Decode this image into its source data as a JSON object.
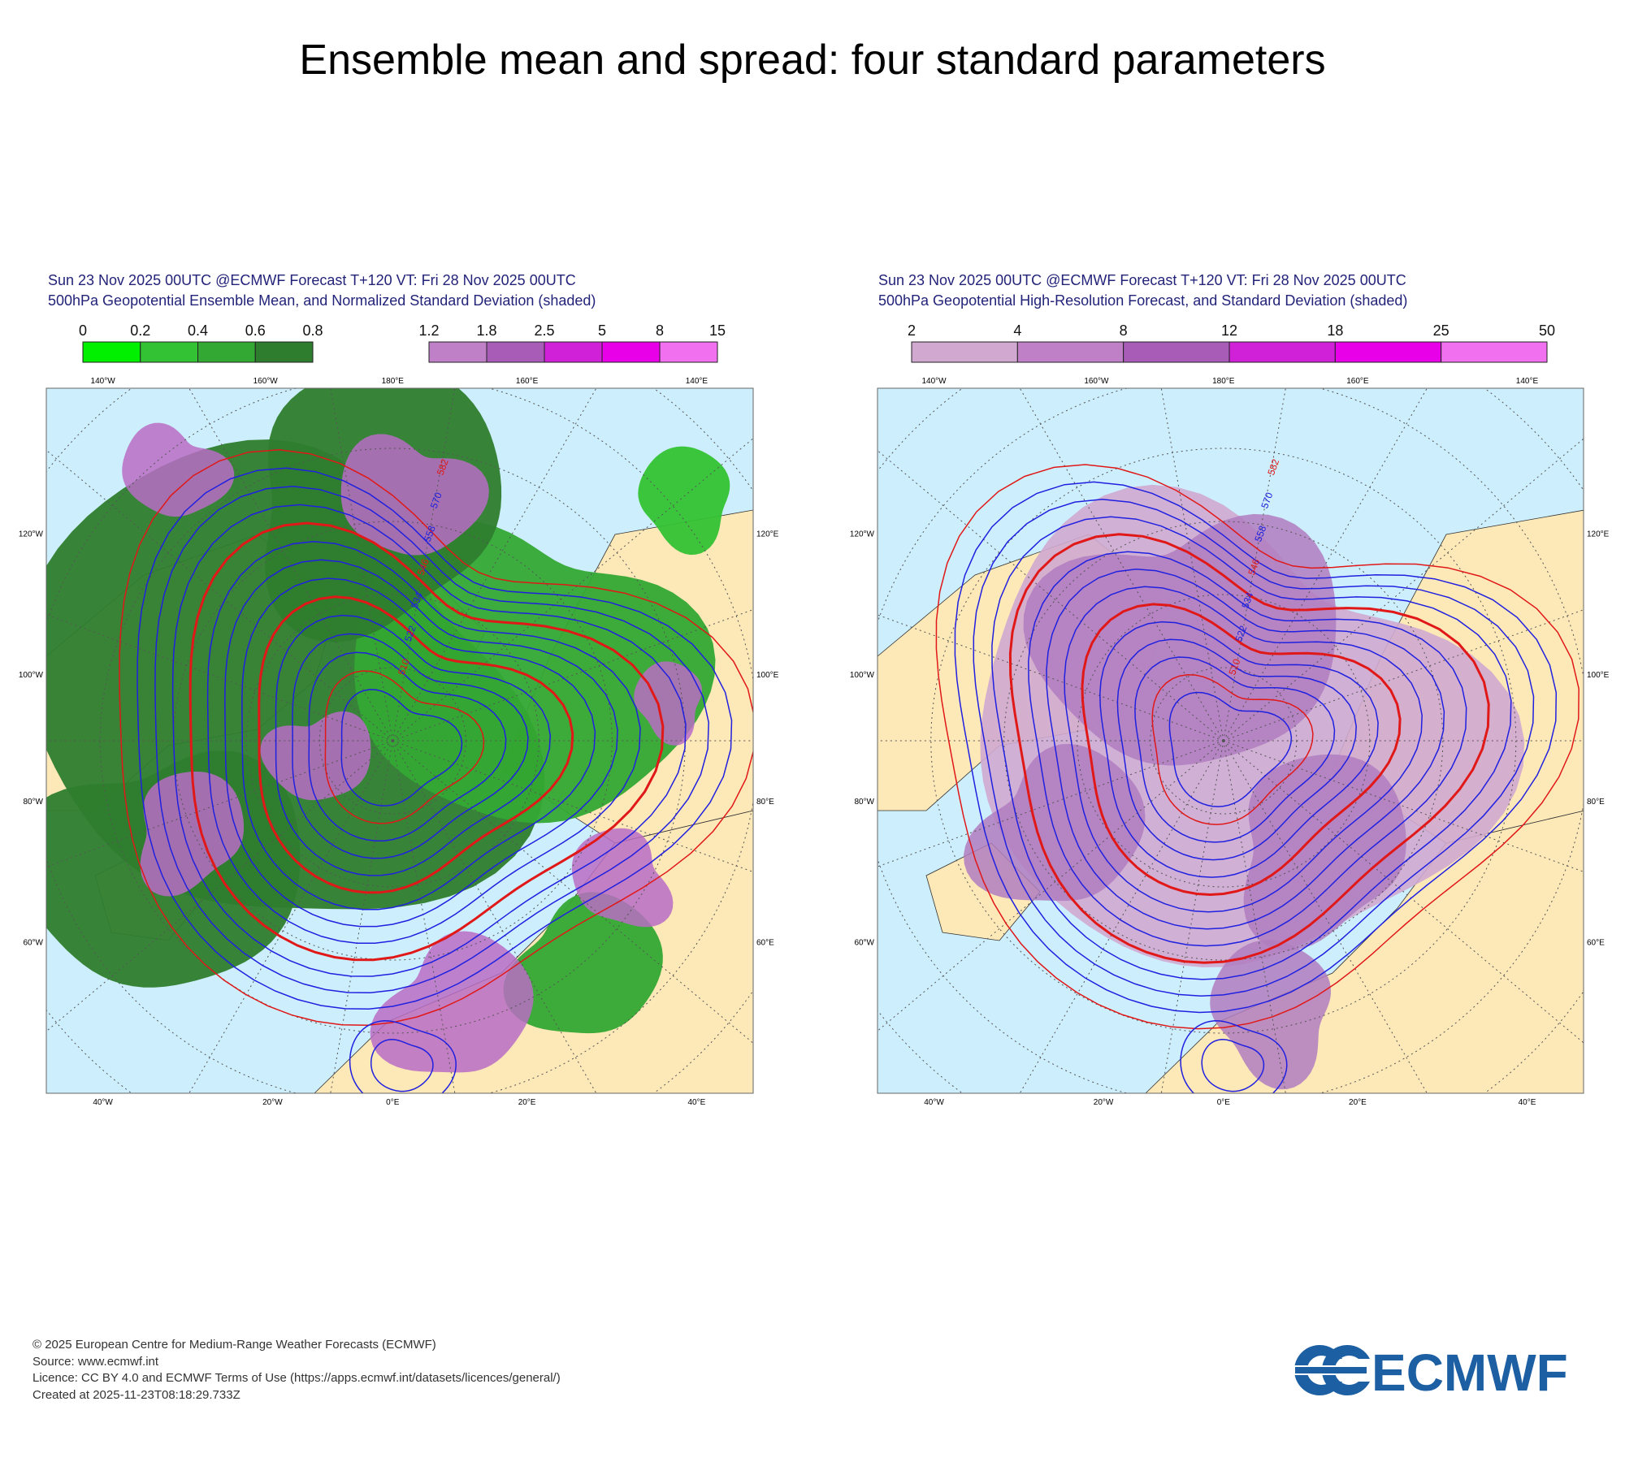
{
  "title": "Ensemble mean and spread: four standard parameters",
  "panels": [
    {
      "header": [
        "Sun 23 Nov 2025 00UTC @ECMWF Forecast T+120 VT: Fri 28 Nov 2025 00UTC",
        "500hPa Geopotential Ensemble Mean, and Normalized Standard Deviation (shaded)"
      ],
      "colorbars": [
        {
          "ticks": [
            "0",
            "0.2",
            "0.4",
            "0.6",
            "0.8"
          ],
          "colors": [
            "#00f000",
            "#33c233",
            "#33a833",
            "#2e7d2e"
          ]
        },
        {
          "ticks": [
            "1.2",
            "1.8",
            "2.5",
            "5",
            "8",
            "15"
          ],
          "colors": [
            "#c080c8",
            "#a85cb8",
            "#d020d8",
            "#e800e8",
            "#f070f0"
          ]
        }
      ],
      "contour_labels": [
        "582",
        "570",
        "558",
        "546",
        "534",
        "522",
        "510"
      ]
    },
    {
      "header": [
        "Sun 23 Nov 2025 00UTC @ECMWF Forecast T+120 VT: Fri 28 Nov 2025 00UTC",
        "500hPa Geopotential High-Resolution Forecast, and Standard Deviation (shaded)"
      ],
      "colorbars": [
        {
          "ticks": [
            "2",
            "4",
            "8",
            "12",
            "18",
            "25",
            "50"
          ],
          "colors": [
            "#d0a8d0",
            "#c080c8",
            "#a85cb8",
            "#d020d8",
            "#e800e8",
            "#f070f0"
          ]
        }
      ],
      "contour_labels": [
        "582",
        "570",
        "558",
        "546",
        "534",
        "522",
        "510"
      ]
    }
  ],
  "map_labels": {
    "top": [
      "140°W",
      "160°W",
      "180°E",
      "160°E",
      "140°E"
    ],
    "bottom": [
      "40°W",
      "20°W",
      "0°E",
      "20°E",
      "40°E"
    ],
    "left": [
      "120°W",
      "100°W",
      "80°W",
      "60°W"
    ],
    "right": [
      "120°E",
      "100°E",
      "80°E",
      "60°E"
    ]
  },
  "footer": [
    "© 2025 European Centre for Medium-Range Weather Forecasts (ECMWF)",
    "Source: www.ecmwf.int",
    "Licence: CC BY 4.0 and ECMWF Terms of Use (https://apps.ecmwf.int/datasets/licences/general/)",
    "Created at 2025-11-23T08:18:29.733Z"
  ],
  "logo": "ECMWF"
}
